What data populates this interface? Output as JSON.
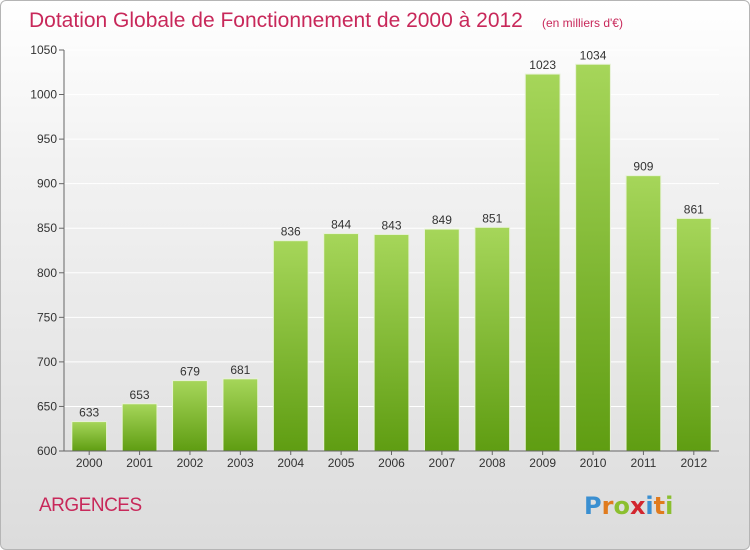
{
  "title": "Dotation Globale de Fonctionnement de 2000 à 2012",
  "unit_note": "(en milliers d'€)",
  "place_name": "ARGENCES",
  "logo": {
    "letters": [
      "P",
      "r",
      "o",
      "x",
      "i",
      "t",
      "i"
    ],
    "colors": [
      "#3a8fd1",
      "#e07b1e",
      "#8bbf2f",
      "#d2262f",
      "#3a8fd1",
      "#e07b1e",
      "#8bbf2f"
    ]
  },
  "colors": {
    "title": "#c8285a",
    "bar_top": "#a6d65a",
    "bar_bottom": "#5f9d12",
    "grid": "#ffffff"
  },
  "chart_data": {
    "type": "bar",
    "categories": [
      "2000",
      "2001",
      "2002",
      "2003",
      "2004",
      "2005",
      "2006",
      "2007",
      "2008",
      "2009",
      "2010",
      "2011",
      "2012"
    ],
    "values": [
      633,
      653,
      679,
      681,
      836,
      844,
      843,
      849,
      851,
      1023,
      1034,
      909,
      861
    ],
    "ylim": [
      600,
      1050
    ],
    "yticks": [
      600,
      650,
      700,
      750,
      800,
      850,
      900,
      950,
      1000,
      1050
    ],
    "grid": true,
    "legend": "none"
  }
}
